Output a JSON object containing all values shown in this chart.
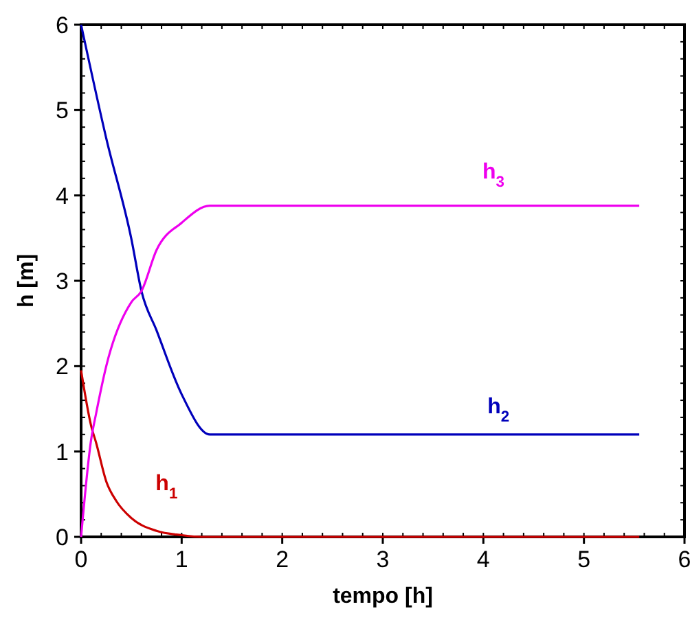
{
  "chart_data": {
    "type": "line",
    "xlabel": "tempo [h]",
    "ylabel": "h [m]",
    "xlim": [
      0,
      6
    ],
    "xticks": [
      0,
      1,
      2,
      3,
      4,
      5,
      6
    ],
    "ylim": [
      0,
      6
    ],
    "yticks": [
      0,
      1,
      2,
      3,
      4,
      5,
      6
    ],
    "grid": false,
    "marker": "none",
    "line_style": "solid",
    "series": [
      {
        "name": "h$_{1}$",
        "color": "#cc0000",
        "x": [
          0,
          0.1,
          0.15,
          0.25,
          0.35,
          0.5,
          0.75,
          1.0,
          1.2,
          5.55
        ],
        "values": [
          1.95,
          1.3,
          1.1,
          0.65,
          0.42,
          0.22,
          0.07,
          0.02,
          0,
          0
        ]
      },
      {
        "name": "h$_{2}$",
        "color": "#0000bb",
        "x": [
          0,
          0.25,
          0.5,
          0.6,
          0.75,
          1.0,
          1.28,
          5.55
        ],
        "values": [
          6,
          4.67,
          3.49,
          2.88,
          2.42,
          1.67,
          1.2,
          1.2
        ]
      },
      {
        "name": "h$_{3}$",
        "color": "#ee00ee",
        "x": [
          0,
          0.1,
          0.15,
          0.25,
          0.5,
          0.6,
          0.75,
          1.0,
          1.28,
          5.55
        ],
        "values": [
          0,
          1.14,
          1.45,
          2.0,
          2.75,
          2.88,
          3.36,
          3.68,
          3.88,
          3.88
        ]
      }
    ]
  }
}
